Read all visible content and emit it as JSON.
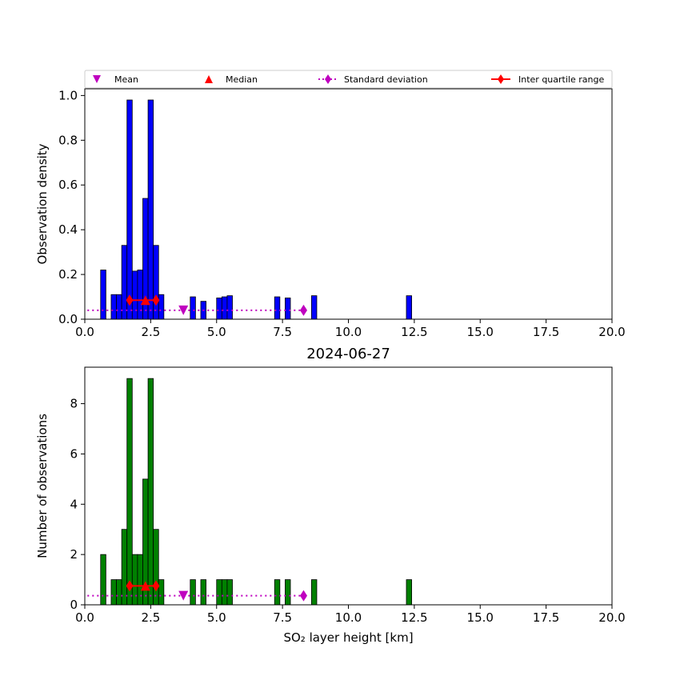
{
  "chart_data": [
    {
      "type": "bar",
      "panel": "top",
      "title": "",
      "xlabel": "",
      "ylabel": "Observation density",
      "xlim": [
        0,
        20
      ],
      "ylim": [
        0,
        1.03
      ],
      "xticks": [
        0,
        2.5,
        5,
        7.5,
        10,
        12.5,
        15,
        17.5,
        20
      ],
      "xtick_labels": [
        "0.0",
        "2.5",
        "5.0",
        "7.5",
        "10.0",
        "12.5",
        "15.0",
        "17.5",
        "20.0"
      ],
      "yticks": [
        0,
        0.2,
        0.4,
        0.6,
        0.8,
        1.0
      ],
      "ytick_labels": [
        "0.0",
        "0.2",
        "0.4",
        "0.6",
        "0.8",
        "1.0"
      ],
      "bar_color": "#0000ff",
      "bin_width": 0.2,
      "bins": [
        {
          "x": 0.7,
          "value": 0.22
        },
        {
          "x": 1.1,
          "value": 0.11
        },
        {
          "x": 1.3,
          "value": 0.11
        },
        {
          "x": 1.5,
          "value": 0.33
        },
        {
          "x": 1.7,
          "value": 0.98
        },
        {
          "x": 1.9,
          "value": 0.215
        },
        {
          "x": 2.1,
          "value": 0.22
        },
        {
          "x": 2.3,
          "value": 0.54
        },
        {
          "x": 2.5,
          "value": 0.98
        },
        {
          "x": 2.7,
          "value": 0.33
        },
        {
          "x": 2.9,
          "value": 0.11
        },
        {
          "x": 4.1,
          "value": 0.1
        },
        {
          "x": 4.5,
          "value": 0.08
        },
        {
          "x": 5.1,
          "value": 0.095
        },
        {
          "x": 5.3,
          "value": 0.1
        },
        {
          "x": 5.5,
          "value": 0.105
        },
        {
          "x": 7.3,
          "value": 0.1
        },
        {
          "x": 7.7,
          "value": 0.095
        },
        {
          "x": 8.7,
          "value": 0.105
        },
        {
          "x": 12.3,
          "value": 0.105
        }
      ],
      "stats": {
        "mean": 3.74,
        "median": 2.3,
        "std_range": [
          0.1,
          8.3
        ],
        "iqr": [
          1.7,
          2.7
        ],
        "stat_y": 0.04,
        "iqr_y": 0.085
      }
    },
    {
      "type": "bar",
      "panel": "bottom",
      "title": "2024-06-27",
      "xlabel": "SO₂ layer height [km]",
      "ylabel": "Number of observations",
      "xlim": [
        0,
        20
      ],
      "ylim": [
        0,
        9.45
      ],
      "xticks": [
        0,
        2.5,
        5,
        7.5,
        10,
        12.5,
        15,
        17.5,
        20
      ],
      "xtick_labels": [
        "0.0",
        "2.5",
        "5.0",
        "7.5",
        "10.0",
        "12.5",
        "15.0",
        "17.5",
        "20.0"
      ],
      "yticks": [
        0,
        2,
        4,
        6,
        8
      ],
      "ytick_labels": [
        "0",
        "2",
        "4",
        "6",
        "8"
      ],
      "bar_color": "#008000",
      "bin_width": 0.2,
      "bins": [
        {
          "x": 0.7,
          "value": 2
        },
        {
          "x": 1.1,
          "value": 1
        },
        {
          "x": 1.3,
          "value": 1
        },
        {
          "x": 1.5,
          "value": 3
        },
        {
          "x": 1.7,
          "value": 9
        },
        {
          "x": 1.9,
          "value": 2
        },
        {
          "x": 2.1,
          "value": 2
        },
        {
          "x": 2.3,
          "value": 5
        },
        {
          "x": 2.5,
          "value": 9
        },
        {
          "x": 2.7,
          "value": 3
        },
        {
          "x": 2.9,
          "value": 1
        },
        {
          "x": 4.1,
          "value": 1
        },
        {
          "x": 4.5,
          "value": 1
        },
        {
          "x": 5.1,
          "value": 1
        },
        {
          "x": 5.3,
          "value": 1
        },
        {
          "x": 5.5,
          "value": 1
        },
        {
          "x": 7.3,
          "value": 1
        },
        {
          "x": 7.7,
          "value": 1
        },
        {
          "x": 8.7,
          "value": 1
        },
        {
          "x": 12.3,
          "value": 1
        }
      ],
      "stats": {
        "mean": 3.74,
        "median": 2.3,
        "std_range": [
          0.1,
          8.3
        ],
        "iqr": [
          1.7,
          2.7
        ],
        "stat_y": 0.36,
        "iqr_y": 0.75
      }
    }
  ],
  "legend": {
    "placement": "top",
    "items": [
      {
        "label": "Mean",
        "marker": "triangle-down",
        "color": "#bf00bf"
      },
      {
        "label": "Median",
        "marker": "triangle-up",
        "color": "#ff0000"
      },
      {
        "label": "Standard deviation",
        "marker": "diamond-dotted-line",
        "color": "#bf00bf"
      },
      {
        "label": "Inter quartile range",
        "marker": "diamond-solid-line",
        "color": "#ff0000"
      }
    ]
  }
}
